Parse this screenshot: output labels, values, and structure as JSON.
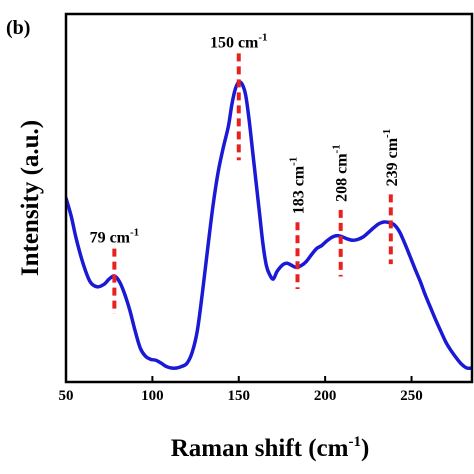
{
  "panel_label": "(b)",
  "chart_data": {
    "type": "line",
    "xlabel": "Raman shift (cm",
    "xlabel_sup": "-1",
    "xlabel_end": ")",
    "ylabel": "Intensity (a.u.)",
    "xlim": [
      50,
      285
    ],
    "ylim": [
      0,
      1
    ],
    "yticks_visible": false,
    "grid": false,
    "xticks": [
      50,
      100,
      150,
      200,
      250
    ],
    "colors": {
      "line": "#1a1ad6",
      "marker": "#e8201e"
    },
    "series": [
      {
        "x": [
          50,
          53,
          56,
          60,
          64,
          68,
          72,
          75,
          78,
          81,
          84,
          87,
          90,
          93,
          96,
          99,
          102,
          105,
          108,
          111,
          114,
          117,
          120,
          123,
          126,
          129,
          132,
          135,
          138,
          141,
          144,
          146,
          148,
          150,
          152,
          154,
          156,
          158,
          160,
          162,
          164,
          166,
          168,
          170,
          172,
          174,
          176,
          178,
          180,
          183,
          186,
          189,
          192,
          195,
          198,
          201,
          204,
          207,
          210,
          213,
          216,
          219,
          222,
          225,
          228,
          231,
          234,
          237,
          240,
          243,
          246,
          249,
          252,
          255,
          258,
          261,
          264,
          267,
          270,
          273,
          276,
          279,
          282,
          285
        ],
        "y": [
          0.548,
          0.49,
          0.415,
          0.335,
          0.278,
          0.262,
          0.27,
          0.287,
          0.297,
          0.278,
          0.238,
          0.185,
          0.12,
          0.064,
          0.038,
          0.028,
          0.025,
          0.016,
          0.005,
          0.0,
          0.0,
          0.005,
          0.015,
          0.05,
          0.12,
          0.245,
          0.385,
          0.52,
          0.63,
          0.71,
          0.78,
          0.85,
          0.9,
          0.922,
          0.915,
          0.88,
          0.8,
          0.7,
          0.6,
          0.5,
          0.4,
          0.33,
          0.3,
          0.287,
          0.31,
          0.325,
          0.335,
          0.338,
          0.333,
          0.325,
          0.33,
          0.343,
          0.365,
          0.385,
          0.395,
          0.41,
          0.422,
          0.427,
          0.423,
          0.416,
          0.412,
          0.415,
          0.423,
          0.437,
          0.452,
          0.465,
          0.471,
          0.469,
          0.462,
          0.44,
          0.403,
          0.362,
          0.32,
          0.28,
          0.235,
          0.195,
          0.155,
          0.118,
          0.082,
          0.055,
          0.032,
          0.012,
          0.0,
          0.0
        ]
      }
    ],
    "annotations": [
      {
        "label": "79 cm",
        "sup": "-1",
        "x": 78,
        "y_low": 0.175,
        "y_high": 0.385,
        "orientation": "horizontal"
      },
      {
        "label": "150 cm",
        "sup": "-1",
        "x": 150,
        "y_low": 0.67,
        "y_high": 1.015,
        "orientation": "horizontal"
      },
      {
        "label": "183 cm",
        "sup": "-1",
        "x": 184,
        "y_low": 0.255,
        "y_high": 0.47,
        "orientation": "vertical"
      },
      {
        "label": "208 cm",
        "sup": "-1",
        "x": 209,
        "y_low": 0.295,
        "y_high": 0.51,
        "orientation": "vertical"
      },
      {
        "label": "239 cm",
        "sup": "-1",
        "x": 238,
        "y_low": 0.335,
        "y_high": 0.56,
        "orientation": "vertical"
      }
    ]
  }
}
